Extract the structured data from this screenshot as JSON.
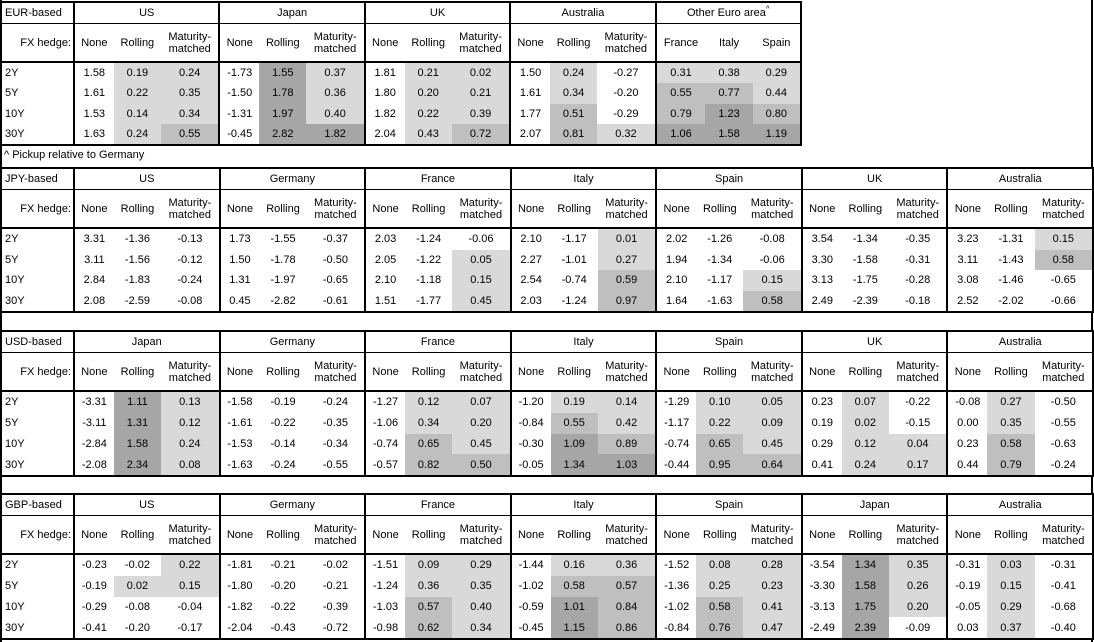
{
  "footnote": "^ Pickup relative to Germany",
  "fx_hedge_label": "FX hedge:",
  "row_labels": [
    "2Y",
    "5Y",
    "10Y",
    "30Y"
  ],
  "colors": {
    "cell_white": "#ffffff",
    "shade_light": "#d9d9d9",
    "shade_medium": "#bfbfbf",
    "shade_dark": "#a6a6a6",
    "border": "#000000"
  },
  "shade_thresholds": {
    "light_min": 0,
    "medium_min": 0.5,
    "dark_min": 1.0
  },
  "tables": [
    {
      "label": "EUR-based",
      "groups": [
        {
          "name": "US",
          "cols": [
            "None",
            "Rolling",
            "Maturity-matched"
          ],
          "shaded": [
            false,
            true,
            true
          ],
          "rows": [
            [
              "1.58",
              "0.19",
              "0.24"
            ],
            [
              "1.61",
              "0.22",
              "0.35"
            ],
            [
              "1.53",
              "0.14",
              "0.34"
            ],
            [
              "1.63",
              "0.24",
              "0.55"
            ]
          ]
        },
        {
          "name": "Japan",
          "cols": [
            "None",
            "Rolling",
            "Maturity-matched"
          ],
          "shaded": [
            false,
            true,
            true
          ],
          "rows": [
            [
              "-1.73",
              "1.55",
              "0.37"
            ],
            [
              "-1.50",
              "1.78",
              "0.36"
            ],
            [
              "-1.31",
              "1.97",
              "0.40"
            ],
            [
              "-0.45",
              "2.82",
              "1.82"
            ]
          ]
        },
        {
          "name": "UK",
          "cols": [
            "None",
            "Rolling",
            "Maturity-matched"
          ],
          "shaded": [
            false,
            true,
            true
          ],
          "rows": [
            [
              "1.81",
              "0.21",
              "0.02"
            ],
            [
              "1.80",
              "0.20",
              "0.21"
            ],
            [
              "1.82",
              "0.22",
              "0.39"
            ],
            [
              "2.04",
              "0.43",
              "0.72"
            ]
          ]
        },
        {
          "name": "Australia",
          "cols": [
            "None",
            "Rolling",
            "Maturity-matched"
          ],
          "shaded": [
            false,
            true,
            true
          ],
          "rows": [
            [
              "1.50",
              "0.24",
              "-0.27"
            ],
            [
              "1.61",
              "0.34",
              "-0.20"
            ],
            [
              "1.77",
              "0.51",
              "-0.29"
            ],
            [
              "2.07",
              "0.81",
              "0.32"
            ]
          ]
        },
        {
          "name": "Other Euro area",
          "superscript": "^",
          "cols": [
            "France",
            "Italy",
            "Spain"
          ],
          "shaded": [
            true,
            true,
            true
          ],
          "rows": [
            [
              "0.31",
              "0.38",
              "0.29"
            ],
            [
              "0.55",
              "0.77",
              "0.44"
            ],
            [
              "0.79",
              "1.23",
              "0.80"
            ],
            [
              "1.06",
              "1.58",
              "1.19"
            ]
          ]
        }
      ]
    },
    {
      "label": "JPY-based",
      "groups": [
        {
          "name": "US",
          "cols": [
            "None",
            "Rolling",
            "Maturity-matched"
          ],
          "shaded": [
            false,
            true,
            true
          ],
          "rows": [
            [
              "3.31",
              "-1.36",
              "-0.13"
            ],
            [
              "3.11",
              "-1.56",
              "-0.12"
            ],
            [
              "2.84",
              "-1.83",
              "-0.24"
            ],
            [
              "2.08",
              "-2.59",
              "-0.08"
            ]
          ]
        },
        {
          "name": "Germany",
          "cols": [
            "None",
            "Rolling",
            "Maturity-matched"
          ],
          "shaded": [
            false,
            true,
            true
          ],
          "rows": [
            [
              "1.73",
              "-1.55",
              "-0.37"
            ],
            [
              "1.50",
              "-1.78",
              "-0.50"
            ],
            [
              "1.31",
              "-1.97",
              "-0.65"
            ],
            [
              "0.45",
              "-2.82",
              "-0.61"
            ]
          ]
        },
        {
          "name": "France",
          "cols": [
            "None",
            "Rolling",
            "Maturity-matched"
          ],
          "shaded": [
            false,
            true,
            true
          ],
          "rows": [
            [
              "2.03",
              "-1.24",
              "-0.06"
            ],
            [
              "2.05",
              "-1.22",
              "0.05"
            ],
            [
              "2.10",
              "-1.18",
              "0.15"
            ],
            [
              "1.51",
              "-1.77",
              "0.45"
            ]
          ]
        },
        {
          "name": "Italy",
          "cols": [
            "None",
            "Rolling",
            "Maturity-matched"
          ],
          "shaded": [
            false,
            true,
            true
          ],
          "rows": [
            [
              "2.10",
              "-1.17",
              "0.01"
            ],
            [
              "2.27",
              "-1.01",
              "0.27"
            ],
            [
              "2.54",
              "-0.74",
              "0.59"
            ],
            [
              "2.03",
              "-1.24",
              "0.97"
            ]
          ]
        },
        {
          "name": "Spain",
          "cols": [
            "None",
            "Rolling",
            "Maturity-matched"
          ],
          "shaded": [
            false,
            true,
            true
          ],
          "rows": [
            [
              "2.02",
              "-1.26",
              "-0.08"
            ],
            [
              "1.94",
              "-1.34",
              "-0.06"
            ],
            [
              "2.10",
              "-1.17",
              "0.15"
            ],
            [
              "1.64",
              "-1.63",
              "0.58"
            ]
          ]
        },
        {
          "name": "UK",
          "cols": [
            "None",
            "Rolling",
            "Maturity-matched"
          ],
          "shaded": [
            false,
            true,
            true
          ],
          "rows": [
            [
              "3.54",
              "-1.34",
              "-0.35"
            ],
            [
              "3.30",
              "-1.58",
              "-0.31"
            ],
            [
              "3.13",
              "-1.75",
              "-0.28"
            ],
            [
              "2.49",
              "-2.39",
              "-0.18"
            ]
          ]
        },
        {
          "name": "Australia",
          "cols": [
            "None",
            "Rolling",
            "Maturity-matched"
          ],
          "shaded": [
            false,
            true,
            true
          ],
          "rows": [
            [
              "3.23",
              "-1.31",
              "0.15"
            ],
            [
              "3.11",
              "-1.43",
              "0.58"
            ],
            [
              "3.08",
              "-1.46",
              "-0.65"
            ],
            [
              "2.52",
              "-2.02",
              "-0.66"
            ]
          ]
        }
      ]
    },
    {
      "label": "USD-based",
      "groups": [
        {
          "name": "Japan",
          "cols": [
            "None",
            "Rolling",
            "Maturity-matched"
          ],
          "shaded": [
            false,
            true,
            true
          ],
          "rows": [
            [
              "-3.31",
              "1.11",
              "0.13"
            ],
            [
              "-3.11",
              "1.31",
              "0.12"
            ],
            [
              "-2.84",
              "1.58",
              "0.24"
            ],
            [
              "-2.08",
              "2.34",
              "0.08"
            ]
          ]
        },
        {
          "name": "Germany",
          "cols": [
            "None",
            "Rolling",
            "Maturity-matched"
          ],
          "shaded": [
            false,
            true,
            true
          ],
          "rows": [
            [
              "-1.58",
              "-0.19",
              "-0.24"
            ],
            [
              "-1.61",
              "-0.22",
              "-0.35"
            ],
            [
              "-1.53",
              "-0.14",
              "-0.34"
            ],
            [
              "-1.63",
              "-0.24",
              "-0.55"
            ]
          ]
        },
        {
          "name": "France",
          "cols": [
            "None",
            "Rolling",
            "Maturity-matched"
          ],
          "shaded": [
            false,
            true,
            true
          ],
          "rows": [
            [
              "-1.27",
              "0.12",
              "0.07"
            ],
            [
              "-1.06",
              "0.34",
              "0.20"
            ],
            [
              "-0.74",
              "0.65",
              "0.45"
            ],
            [
              "-0.57",
              "0.82",
              "0.50"
            ]
          ]
        },
        {
          "name": "Italy",
          "cols": [
            "None",
            "Rolling",
            "Maturity-matched"
          ],
          "shaded": [
            false,
            true,
            true
          ],
          "rows": [
            [
              "-1.20",
              "0.19",
              "0.14"
            ],
            [
              "-0.84",
              "0.55",
              "0.42"
            ],
            [
              "-0.30",
              "1.09",
              "0.89"
            ],
            [
              "-0.05",
              "1.34",
              "1.03"
            ]
          ]
        },
        {
          "name": "Spain",
          "cols": [
            "None",
            "Rolling",
            "Maturity-matched"
          ],
          "shaded": [
            false,
            true,
            true
          ],
          "rows": [
            [
              "-1.29",
              "0.10",
              "0.05"
            ],
            [
              "-1.17",
              "0.22",
              "0.09"
            ],
            [
              "-0.74",
              "0.65",
              "0.45"
            ],
            [
              "-0.44",
              "0.95",
              "0.64"
            ]
          ]
        },
        {
          "name": "UK",
          "cols": [
            "None",
            "Rolling",
            "Maturity-matched"
          ],
          "shaded": [
            false,
            true,
            true
          ],
          "rows": [
            [
              "0.23",
              "0.07",
              "-0.22"
            ],
            [
              "0.19",
              "0.02",
              "-0.15"
            ],
            [
              "0.29",
              "0.12",
              "0.04"
            ],
            [
              "0.41",
              "0.24",
              "0.17"
            ]
          ]
        },
        {
          "name": "Australia",
          "cols": [
            "None",
            "Rolling",
            "Maturity-matched"
          ],
          "shaded": [
            false,
            true,
            true
          ],
          "rows": [
            [
              "-0.08",
              "0.27",
              "-0.50"
            ],
            [
              "0.00",
              "0.35",
              "-0.55"
            ],
            [
              "0.23",
              "0.58",
              "-0.63"
            ],
            [
              "0.44",
              "0.79",
              "-0.24"
            ]
          ]
        }
      ]
    },
    {
      "label": "GBP-based",
      "groups": [
        {
          "name": "US",
          "cols": [
            "None",
            "Rolling",
            "Maturity-matched"
          ],
          "shaded": [
            false,
            true,
            true
          ],
          "rows": [
            [
              "-0.23",
              "-0.02",
              "0.22"
            ],
            [
              "-0.19",
              "0.02",
              "0.15"
            ],
            [
              "-0.29",
              "-0.08",
              "-0.04"
            ],
            [
              "-0.41",
              "-0.20",
              "-0.17"
            ]
          ]
        },
        {
          "name": "Germany",
          "cols": [
            "None",
            "Rolling",
            "Maturity-matched"
          ],
          "shaded": [
            false,
            true,
            true
          ],
          "rows": [
            [
              "-1.81",
              "-0.21",
              "-0.02"
            ],
            [
              "-1.80",
              "-0.20",
              "-0.21"
            ],
            [
              "-1.82",
              "-0.22",
              "-0.39"
            ],
            [
              "-2.04",
              "-0.43",
              "-0.72"
            ]
          ]
        },
        {
          "name": "France",
          "cols": [
            "None",
            "Rolling",
            "Maturity-matched"
          ],
          "shaded": [
            false,
            true,
            true
          ],
          "rows": [
            [
              "-1.51",
              "0.09",
              "0.29"
            ],
            [
              "-1.24",
              "0.36",
              "0.35"
            ],
            [
              "-1.03",
              "0.57",
              "0.40"
            ],
            [
              "-0.98",
              "0.62",
              "0.34"
            ]
          ]
        },
        {
          "name": "Italy",
          "cols": [
            "None",
            "Rolling",
            "Maturity-matched"
          ],
          "shaded": [
            false,
            true,
            true
          ],
          "rows": [
            [
              "-1.44",
              "0.16",
              "0.36"
            ],
            [
              "-1.02",
              "0.58",
              "0.57"
            ],
            [
              "-0.59",
              "1.01",
              "0.84"
            ],
            [
              "-0.45",
              "1.15",
              "0.86"
            ]
          ]
        },
        {
          "name": "Spain",
          "cols": [
            "None",
            "Rolling",
            "Maturity-matched"
          ],
          "shaded": [
            false,
            true,
            true
          ],
          "rows": [
            [
              "-1.52",
              "0.08",
              "0.28"
            ],
            [
              "-1.36",
              "0.25",
              "0.23"
            ],
            [
              "-1.02",
              "0.58",
              "0.41"
            ],
            [
              "-0.84",
              "0.76",
              "0.47"
            ]
          ]
        },
        {
          "name": "Japan",
          "cols": [
            "None",
            "Rolling",
            "Maturity-matched"
          ],
          "shaded": [
            false,
            true,
            true
          ],
          "rows": [
            [
              "-3.54",
              "1.34",
              "0.35"
            ],
            [
              "-3.30",
              "1.58",
              "0.26"
            ],
            [
              "-3.13",
              "1.75",
              "0.20"
            ],
            [
              "-2.49",
              "2.39",
              "-0.09"
            ]
          ]
        },
        {
          "name": "Australia",
          "cols": [
            "None",
            "Rolling",
            "Maturity-matched"
          ],
          "shaded": [
            false,
            true,
            true
          ],
          "rows": [
            [
              "-0.31",
              "0.03",
              "-0.31"
            ],
            [
              "-0.19",
              "0.15",
              "-0.41"
            ],
            [
              "-0.05",
              "0.29",
              "-0.68"
            ],
            [
              "0.03",
              "0.37",
              "-0.40"
            ]
          ]
        }
      ]
    }
  ]
}
